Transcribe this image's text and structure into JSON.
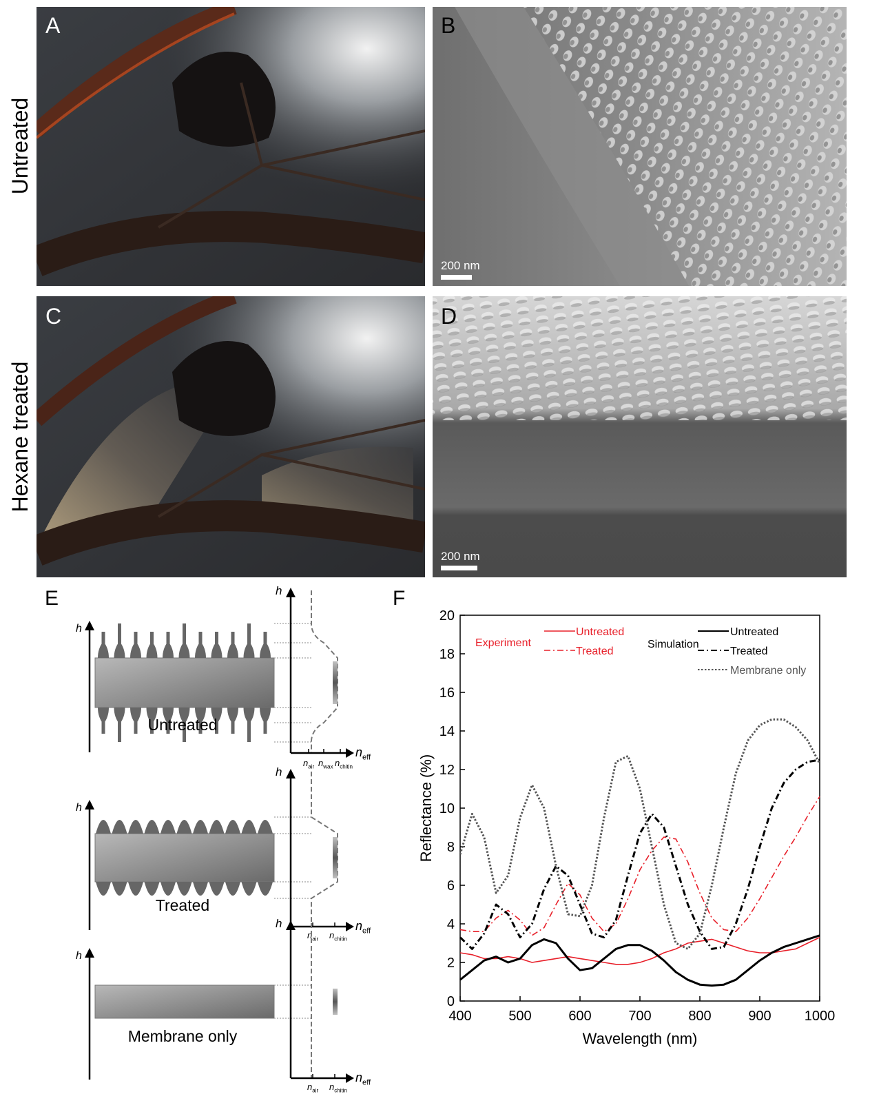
{
  "panels": [
    {
      "label": "A",
      "row_label": "Untreated"
    },
    {
      "label": "B",
      "scale_bar": "200 nm"
    },
    {
      "label": "C",
      "row_label": "Hexane treated"
    },
    {
      "label": "D",
      "scale_bar": "200 nm"
    }
  ],
  "diagram": {
    "label": "E",
    "h": "h",
    "n": "n",
    "eff": "eff",
    "rows": [
      {
        "label": "Untreated",
        "indices": [
          "air",
          "wax",
          "chitin"
        ]
      },
      {
        "label": "Treated",
        "indices": [
          "air",
          "chitin"
        ]
      },
      {
        "label": "Membrane only",
        "indices": [
          "air",
          "chitin"
        ]
      }
    ]
  },
  "chart_data": {
    "type": "line",
    "label": "F",
    "xlabel": "Wavelength (nm)",
    "ylabel": "Reflectance (%)",
    "x": [
      400,
      420,
      440,
      460,
      480,
      500,
      520,
      540,
      560,
      580,
      600,
      620,
      640,
      660,
      680,
      700,
      720,
      740,
      760,
      780,
      800,
      820,
      840,
      860,
      880,
      900,
      920,
      940,
      960,
      980,
      1000
    ],
    "xlim": [
      400,
      1000
    ],
    "xticks": [
      400,
      500,
      600,
      700,
      800,
      900,
      1000
    ],
    "ylim": [
      0,
      20
    ],
    "yticks": [
      0,
      2,
      4,
      6,
      8,
      10,
      12,
      14,
      16,
      18,
      20
    ],
    "series_groups": [
      {
        "title": "Experiment",
        "title_color": "#e8202a",
        "series": [
          {
            "name": "Untreated",
            "color": "#e8202a",
            "style": "solid",
            "line_width": 1.6,
            "values": [
              2.5,
              2.4,
              2.2,
              2.2,
              2.3,
              2.2,
              2.0,
              2.1,
              2.2,
              2.3,
              2.2,
              2.1,
              2.0,
              1.9,
              1.9,
              2.0,
              2.2,
              2.5,
              2.7,
              3.0,
              3.1,
              3.2,
              3.0,
              2.8,
              2.6,
              2.5,
              2.5,
              2.6,
              2.7,
              3.0,
              3.3
            ]
          },
          {
            "name": "Treated",
            "color": "#e8202a",
            "style": "dashdot",
            "line_width": 1.6,
            "values": [
              3.7,
              3.6,
              3.6,
              4.3,
              4.7,
              4.2,
              3.4,
              3.8,
              5.0,
              6.1,
              5.5,
              4.3,
              3.6,
              4.0,
              5.3,
              6.8,
              7.8,
              8.5,
              8.4,
              7.2,
              5.6,
              4.3,
              3.7,
              3.6,
              4.3,
              5.3,
              6.4,
              7.5,
              8.5,
              9.6,
              10.6
            ]
          }
        ]
      },
      {
        "title": "Simulation",
        "title_color": "#000000",
        "series": [
          {
            "name": "Untreated",
            "color": "#000000",
            "style": "solid",
            "line_width": 3,
            "values": [
              1.1,
              1.6,
              2.1,
              2.3,
              2.0,
              2.2,
              2.9,
              3.2,
              3.0,
              2.2,
              1.6,
              1.7,
              2.2,
              2.7,
              2.9,
              2.9,
              2.6,
              2.1,
              1.5,
              1.1,
              0.85,
              0.8,
              0.85,
              1.1,
              1.6,
              2.1,
              2.5,
              2.8,
              3.0,
              3.2,
              3.4
            ]
          },
          {
            "name": "Treated",
            "color": "#000000",
            "style": "dashdot",
            "line_width": 3,
            "values": [
              3.3,
              2.7,
              3.5,
              5.0,
              4.5,
              3.3,
              4.0,
              5.8,
              7.0,
              6.5,
              5.0,
              3.5,
              3.3,
              4.2,
              6.5,
              8.7,
              9.7,
              9.0,
              7.0,
              5.0,
              3.6,
              2.7,
              2.8,
              4.0,
              5.8,
              8.0,
              10.0,
              11.3,
              12.0,
              12.4,
              12.5
            ]
          },
          {
            "name": "Membrane only",
            "color": "#555555",
            "style": "dotted",
            "line_width": 3,
            "values": [
              7.6,
              9.7,
              8.5,
              5.6,
              6.5,
              9.5,
              11.2,
              10.0,
              7.0,
              4.5,
              4.4,
              6.0,
              9.5,
              12.4,
              12.7,
              11.0,
              8.0,
              5.0,
              3.0,
              2.7,
              3.5,
              6.0,
              9.0,
              11.8,
              13.5,
              14.3,
              14.6,
              14.6,
              14.2,
              13.5,
              12.3
            ]
          }
        ]
      }
    ]
  }
}
